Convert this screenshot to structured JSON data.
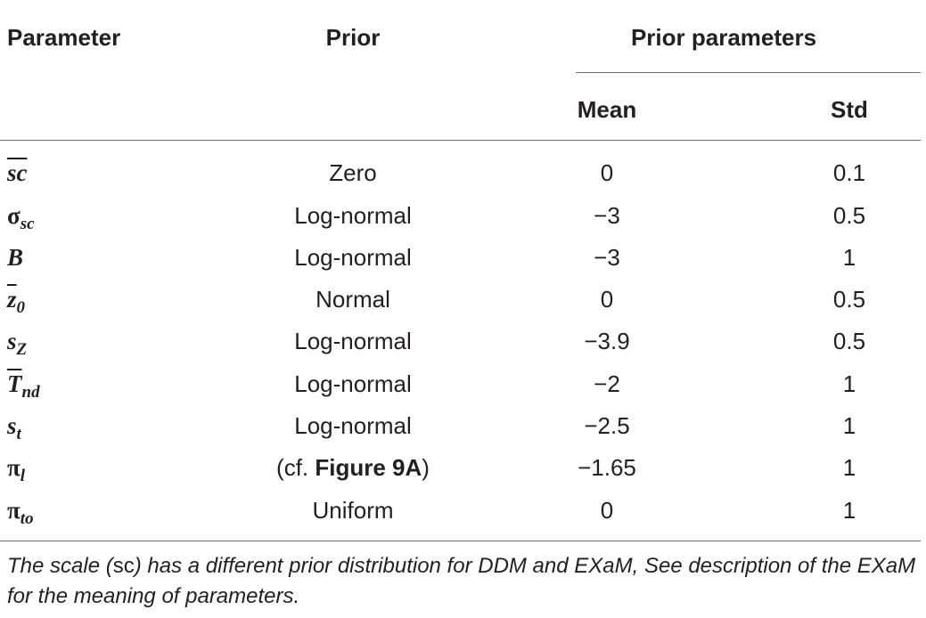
{
  "header": {
    "parameter": "Parameter",
    "prior": "Prior",
    "prior_parameters": "Prior parameters",
    "mean": "Mean",
    "std": "Std"
  },
  "rows": [
    {
      "symbol": "sc",
      "symbol_greek": "",
      "subscript": "",
      "prior": "Zero",
      "mean": "0",
      "std": "0.1"
    },
    {
      "symbol": "",
      "symbol_greek": "σ",
      "subscript": "sc",
      "prior": "Log-normal",
      "mean": "−3",
      "std": "0.5"
    },
    {
      "symbol": "B",
      "symbol_greek": "",
      "subscript": "",
      "prior": "Log-normal",
      "mean": "−3",
      "std": "1"
    },
    {
      "symbol": "z",
      "symbol_greek": "",
      "subscript": "0",
      "prior": "Normal",
      "mean": "0",
      "std": "0.5"
    },
    {
      "symbol": "s",
      "symbol_greek": "",
      "subscript": "Z",
      "prior": "Log-normal",
      "mean": "−3.9",
      "std": "0.5"
    },
    {
      "symbol": "T",
      "symbol_greek": "",
      "subscript": "nd",
      "prior": "Log-normal",
      "mean": "−2",
      "std": "1"
    },
    {
      "symbol": "s",
      "symbol_greek": "",
      "subscript": "t",
      "prior": "Log-normal",
      "mean": "−2.5",
      "std": "1"
    },
    {
      "symbol": "",
      "symbol_greek": "π",
      "subscript": "l",
      "prior_pre": "(cf. ",
      "prior_ref": "Figure 9A",
      "prior_post": ")",
      "mean": "−1.65",
      "std": "1"
    },
    {
      "symbol": "",
      "symbol_greek": "π",
      "subscript": "to",
      "prior": "Uniform",
      "mean": "0",
      "std": "1"
    }
  ],
  "footnote": {
    "part1": "The scale (",
    "code": "sc",
    "part2": ") has a different prior distribution for DDM and EXaM, See description of the EXaM for the meaning of parameters."
  }
}
